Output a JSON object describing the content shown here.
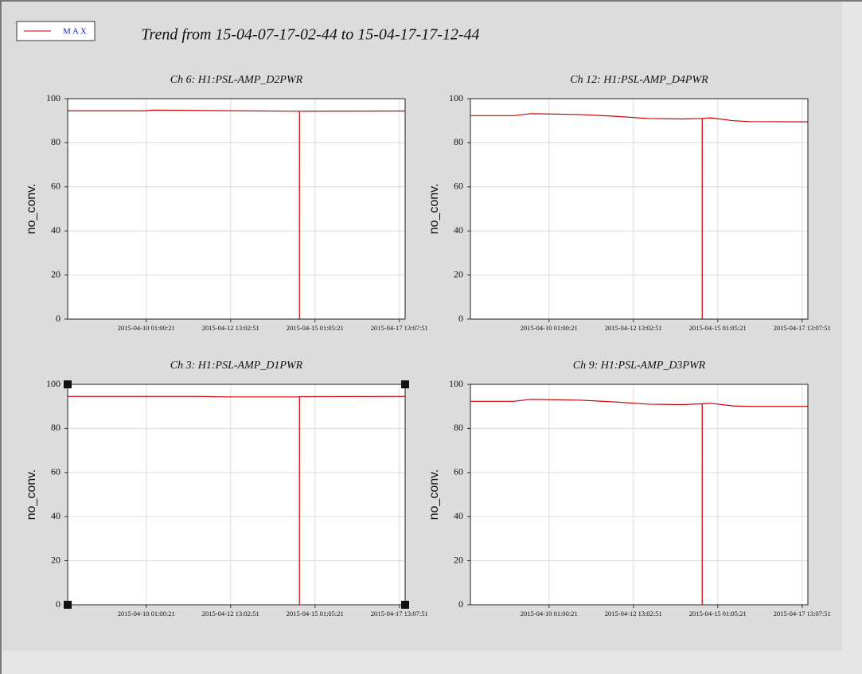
{
  "header": {
    "title": "Trend from 15-04-07-17-02-44 to 15-04-17-17-12-44"
  },
  "legend": {
    "name": "MAX",
    "color": "#cc0000"
  },
  "chart_data": [
    {
      "type": "line",
      "title": "Ch 6: H1:PSL-AMP_D2PWR",
      "ylabel": "no_conv.",
      "color": "#cc0000",
      "grid": true,
      "x": [
        "2015-04-07 17:02:44",
        "2015-04-10 00:00:00",
        "2015-04-10 06:00:00",
        "2015-04-14 14:00:00",
        "2015-04-14 14:01:00",
        "2015-04-14 14:02:00",
        "2015-04-17 17:12:44"
      ],
      "values": [
        94.5,
        94.5,
        94.8,
        94.3,
        0,
        94.3,
        94.4
      ],
      "xlim": [
        "2015-04-07 17:02:44",
        "2015-04-17 17:12:44"
      ],
      "xticks": [
        "2015-04-10 01:00:21",
        "2015-04-12 13:02:51",
        "2015-04-15 01:05:21",
        "2015-04-17 13:07:51"
      ],
      "ylim": [
        0,
        100
      ],
      "yticks": [
        0,
        20,
        40,
        60,
        80,
        100
      ]
    },
    {
      "type": "line",
      "title": "Ch 12: H1:PSL-AMP_D4PWR",
      "ylabel": "no_conv.",
      "color": "#cc0000",
      "grid": true,
      "x": [
        "2015-04-07 17:02:44",
        "2015-04-09 00:00:00",
        "2015-04-09 12:00:00",
        "2015-04-11 00:00:00",
        "2015-04-12 00:00:00",
        "2015-04-13 00:00:00",
        "2015-04-14 00:00:00",
        "2015-04-14 14:00:00",
        "2015-04-14 14:01:00",
        "2015-04-14 14:02:00",
        "2015-04-14 20:00:00",
        "2015-04-15 12:00:00",
        "2015-04-16 00:00:00",
        "2015-04-17 17:12:44"
      ],
      "values": [
        92.3,
        92.3,
        93.2,
        92.8,
        92,
        91,
        90.8,
        91,
        0,
        91,
        91.3,
        90,
        89.6,
        89.5
      ],
      "xlim": [
        "2015-04-07 17:02:44",
        "2015-04-17 17:12:44"
      ],
      "xticks": [
        "2015-04-10 01:00:21",
        "2015-04-12 13:02:51",
        "2015-04-15 01:05:21",
        "2015-04-17 13:07:51"
      ],
      "ylim": [
        0,
        100
      ],
      "yticks": [
        0,
        20,
        40,
        60,
        80,
        100
      ]
    },
    {
      "type": "line",
      "title": "Ch 3: H1:PSL-AMP_D1PWR",
      "ylabel": "no_conv.",
      "color": "#cc0000",
      "grid": true,
      "x": [
        "2015-04-07 17:02:44",
        "2015-04-11 12:00:00",
        "2015-04-12 12:00:00",
        "2015-04-14 14:00:00",
        "2015-04-14 14:01:00",
        "2015-04-14 14:02:00",
        "2015-04-17 17:12:44"
      ],
      "values": [
        94.5,
        94.5,
        94.3,
        94.3,
        0,
        94.4,
        94.5
      ],
      "xlim": [
        "2015-04-07 17:02:44",
        "2015-04-17 17:12:44"
      ],
      "xticks": [
        "2015-04-10 01:00:21",
        "2015-04-12 13:02:51",
        "2015-04-15 01:05:21",
        "2015-04-17 13:07:51"
      ],
      "ylim": [
        0,
        100
      ],
      "yticks": [
        0,
        20,
        40,
        60,
        80,
        100
      ]
    },
    {
      "type": "line",
      "title": "Ch 9: H1:PSL-AMP_D3PWR",
      "ylabel": "no_conv.",
      "color": "#cc0000",
      "grid": true,
      "x": [
        "2015-04-07 17:02:44",
        "2015-04-09 00:00:00",
        "2015-04-09 12:00:00",
        "2015-04-11 00:00:00",
        "2015-04-12 00:00:00",
        "2015-04-13 00:00:00",
        "2015-04-14 00:00:00",
        "2015-04-14 14:00:00",
        "2015-04-14 14:01:00",
        "2015-04-14 14:02:00",
        "2015-04-14 20:00:00",
        "2015-04-15 12:00:00",
        "2015-04-16 00:00:00",
        "2015-04-17 17:12:44"
      ],
      "values": [
        92.3,
        92.3,
        93.2,
        92.8,
        92,
        91,
        90.8,
        91.2,
        0,
        91.2,
        91.4,
        90.2,
        90,
        90
      ],
      "xlim": [
        "2015-04-07 17:02:44",
        "2015-04-17 17:12:44"
      ],
      "xticks": [
        "2015-04-10 01:00:21",
        "2015-04-12 13:02:51",
        "2015-04-15 01:05:21",
        "2015-04-17 13:07:51"
      ],
      "ylim": [
        0,
        100
      ],
      "yticks": [
        0,
        20,
        40,
        60,
        80,
        100
      ]
    }
  ]
}
